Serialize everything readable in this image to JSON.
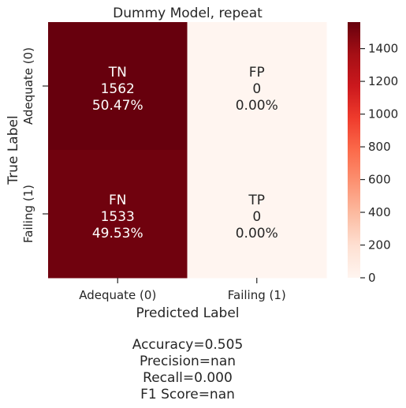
{
  "chart_data": {
    "type": "heatmap",
    "title": "Dummy Model, repeat",
    "xlabel": "Predicted Label",
    "ylabel": "True Label",
    "x_categories": [
      "Adequate (0)",
      "Failing (1)"
    ],
    "y_categories": [
      "Adequate (0)",
      "Failing (1)"
    ],
    "cells": [
      [
        {
          "code": "TN",
          "count": "1562",
          "percent": "50.47%",
          "value": 1562
        },
        {
          "code": "FP",
          "count": "0",
          "percent": "0.00%",
          "value": 0
        }
      ],
      [
        {
          "code": "FN",
          "count": "1533",
          "percent": "49.53%",
          "value": 1533
        },
        {
          "code": "TP",
          "count": "0",
          "percent": "0.00%",
          "value": 0
        }
      ]
    ],
    "colorbar": {
      "cmap": "Reds",
      "vmin": 0,
      "vmax": 1562,
      "ticks": [
        0,
        200,
        400,
        600,
        800,
        1000,
        1200,
        1400
      ]
    }
  },
  "metrics": [
    "Accuracy=0.505",
    "Precision=nan",
    "Recall=0.000",
    "F1 Score=nan"
  ]
}
